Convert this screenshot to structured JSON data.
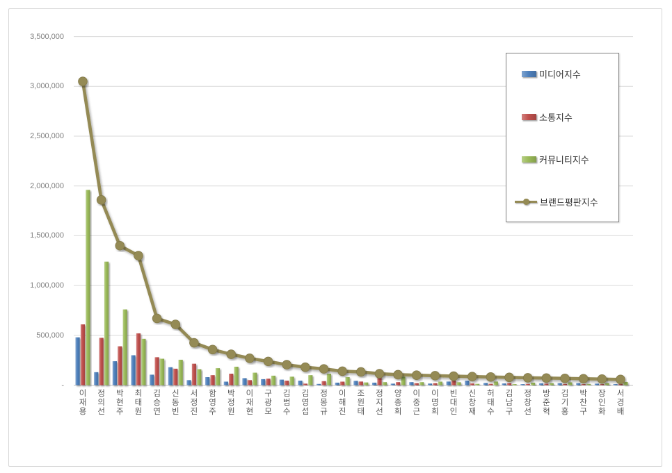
{
  "page": {
    "background": "#ffffff"
  },
  "colors": {
    "gridline": "#d9d9d9",
    "axis_line": "#bfbfbf",
    "tick_text": "#7f7f7f",
    "category_text": "#595959",
    "legend_border": "#828282",
    "legend_text": "#303030",
    "frame_border": "#d6d6d6",
    "series_blue": "#4F81BD",
    "series_red": "#C0504D",
    "series_green": "#9BBB59",
    "series_olive": "#948A54"
  },
  "chart_data": {
    "type": "bar",
    "subtype": "combo-bar-line",
    "title": "",
    "xlabel": "",
    "ylabel": "",
    "grid": true,
    "legend_position": "top-right",
    "categories": [
      "이재용",
      "정의선",
      "박현주",
      "최태원",
      "김승연",
      "신동빈",
      "서정진",
      "함영주",
      "박정원",
      "이재현",
      "구광모",
      "김범수",
      "김영섭",
      "정몽규",
      "이해진",
      "조원태",
      "정지선",
      "양종희",
      "이중근",
      "이명희",
      "빈대인",
      "신창재",
      "허태수",
      "김남구",
      "정창선",
      "방준혁",
      "김기홍",
      "박찬구",
      "장인화",
      "서경배"
    ],
    "series": [
      {
        "name": "미디어지수",
        "type": "bar",
        "color": "#4F81BD",
        "values": [
          480000,
          130000,
          240000,
          300000,
          105000,
          180000,
          50000,
          80000,
          35000,
          70000,
          60000,
          55000,
          45000,
          12000,
          25000,
          43000,
          25000,
          15000,
          30000,
          16000,
          36000,
          45000,
          22000,
          17000,
          10000,
          18000,
          20000,
          20000,
          15000,
          10000
        ]
      },
      {
        "name": "소통지수",
        "type": "bar",
        "color": "#C0504D",
        "values": [
          610000,
          475000,
          390000,
          520000,
          280000,
          165000,
          215000,
          100000,
          115000,
          50000,
          65000,
          45000,
          15000,
          40000,
          35000,
          36000,
          80000,
          30000,
          20000,
          20000,
          45000,
          17000,
          13000,
          20000,
          12000,
          15000,
          12000,
          10000,
          10000,
          12000
        ]
      },
      {
        "name": "커뮤니티지수",
        "type": "bar",
        "color": "#9BBB59",
        "values": [
          1960000,
          1240000,
          760000,
          465000,
          265000,
          255000,
          160000,
          170000,
          185000,
          125000,
          95000,
          85000,
          100000,
          115000,
          80000,
          27000,
          30000,
          85000,
          30000,
          35000,
          29000,
          13000,
          36000,
          10000,
          25000,
          20000,
          28000,
          12000,
          20000,
          32000
        ]
      },
      {
        "name": "브랜드평판지수",
        "type": "line",
        "color": "#948A54",
        "values": [
          3050000,
          1860000,
          1400000,
          1300000,
          670000,
          610000,
          425000,
          357000,
          310000,
          270000,
          238000,
          205000,
          180000,
          163000,
          140000,
          133000,
          115000,
          105000,
          100000,
          95000,
          90000,
          86000,
          82000,
          78000,
          74000,
          71000,
          68000,
          64000,
          61000,
          57000
        ]
      }
    ],
    "y_axis": {
      "min": 0,
      "max": 3500000,
      "step": 500000,
      "tick_labels": [
        "-",
        "500,000",
        "1,000,000",
        "1,500,000",
        "2,000,000",
        "2,500,000",
        "3,000,000",
        "3,500,000"
      ]
    },
    "legend": {
      "entries": [
        "미디어지수",
        "소통지수",
        "커뮤니티지수",
        "브랜드평판지수"
      ]
    }
  }
}
